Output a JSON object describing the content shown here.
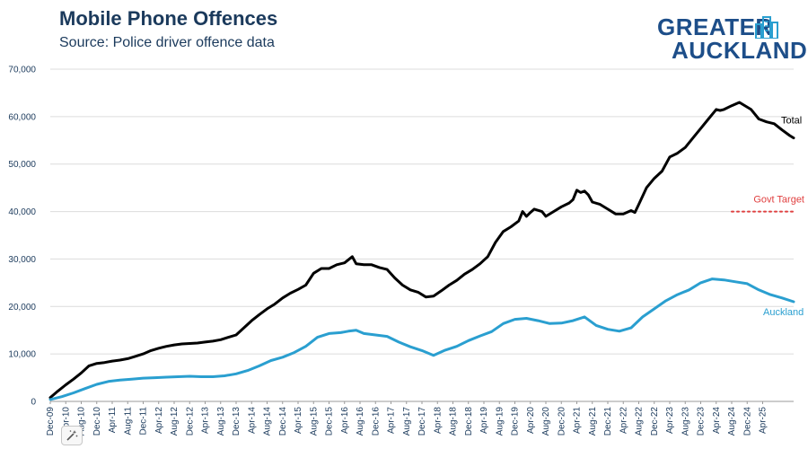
{
  "header": {
    "title": "Mobile Phone Offences",
    "subtitle": "Source: Police driver offence data"
  },
  "logo": {
    "line1": "GREATER",
    "line2": "AUCKLAND",
    "color": "#1d4e89"
  },
  "chart_data": {
    "type": "line",
    "title": "Mobile Phone Offences",
    "subtitle": "Source: Police driver offence data",
    "xlabel": "",
    "ylabel": "",
    "ylim": [
      0,
      70000
    ],
    "yticks": [
      0,
      10000,
      20000,
      30000,
      40000,
      50000,
      60000,
      70000
    ],
    "ytick_labels": [
      "0",
      "10,000",
      "20,000",
      "30,000",
      "40,000",
      "50,000",
      "60,000",
      "70,000"
    ],
    "x_range": [
      "2009-12",
      "2025-06"
    ],
    "x_tick_labels": [
      "Dec-09",
      "Apr-10",
      "Aug-10",
      "Dec-10",
      "Apr-11",
      "Aug-11",
      "Dec-11",
      "Apr-12",
      "Aug-12",
      "Dec-12",
      "Apr-13",
      "Aug-13",
      "Dec-13",
      "Apr-14",
      "Aug-14",
      "Dec-14",
      "Apr-15",
      "Aug-15",
      "Dec-15",
      "Apr-16",
      "Aug-16",
      "Dec-16",
      "Apr-17",
      "Aug-17",
      "Dec-17",
      "Apr-18",
      "Aug-18",
      "Dec-18",
      "Apr-19",
      "Aug-19",
      "Dec-19",
      "Apr-20",
      "Aug-20",
      "Dec-20",
      "Apr-21",
      "Aug-21",
      "Dec-21",
      "Apr-22",
      "Aug-22",
      "Dec-22",
      "Apr-23",
      "Aug-23",
      "Dec-23",
      "Apr-24",
      "Aug-24",
      "Dec-24",
      "Apr-25"
    ],
    "grid": true,
    "series": [
      {
        "name": "Total",
        "color": "#000000",
        "points": [
          [
            0,
            800
          ],
          [
            2,
            2200
          ],
          [
            4,
            3500
          ],
          [
            6,
            4700
          ],
          [
            8,
            6000
          ],
          [
            10,
            7500
          ],
          [
            12,
            8000
          ],
          [
            14,
            8200
          ],
          [
            16,
            8500
          ],
          [
            18,
            8700
          ],
          [
            20,
            9000
          ],
          [
            22,
            9500
          ],
          [
            24,
            10000
          ],
          [
            26,
            10700
          ],
          [
            28,
            11200
          ],
          [
            30,
            11600
          ],
          [
            32,
            11900
          ],
          [
            34,
            12100
          ],
          [
            36,
            12200
          ],
          [
            38,
            12300
          ],
          [
            40,
            12500
          ],
          [
            42,
            12700
          ],
          [
            44,
            13000
          ],
          [
            46,
            13500
          ],
          [
            48,
            14000
          ],
          [
            50,
            15500
          ],
          [
            52,
            17000
          ],
          [
            54,
            18300
          ],
          [
            56,
            19500
          ],
          [
            58,
            20500
          ],
          [
            60,
            21800
          ],
          [
            62,
            22800
          ],
          [
            64,
            23600
          ],
          [
            66,
            24500
          ],
          [
            68,
            27000
          ],
          [
            70,
            28000
          ],
          [
            72,
            28000
          ],
          [
            74,
            28800
          ],
          [
            76,
            29200
          ],
          [
            78,
            30500
          ],
          [
            79,
            29000
          ],
          [
            81,
            28800
          ],
          [
            83,
            28800
          ],
          [
            85,
            28200
          ],
          [
            87,
            27800
          ],
          [
            89,
            26000
          ],
          [
            91,
            24500
          ],
          [
            93,
            23500
          ],
          [
            95,
            23000
          ],
          [
            97,
            22000
          ],
          [
            99,
            22200
          ],
          [
            101,
            23300
          ],
          [
            103,
            24500
          ],
          [
            105,
            25500
          ],
          [
            107,
            26800
          ],
          [
            109,
            27800
          ],
          [
            111,
            29000
          ],
          [
            113,
            30500
          ],
          [
            115,
            33500
          ],
          [
            117,
            35800
          ],
          [
            119,
            36800
          ],
          [
            121,
            38000
          ],
          [
            122,
            40000
          ],
          [
            123,
            39000
          ],
          [
            124,
            39800
          ],
          [
            125,
            40500
          ],
          [
            127,
            40000
          ],
          [
            128,
            39000
          ],
          [
            130,
            40000
          ],
          [
            132,
            41000
          ],
          [
            134,
            41800
          ],
          [
            135,
            42500
          ],
          [
            136,
            44500
          ],
          [
            137,
            44000
          ],
          [
            138,
            44300
          ],
          [
            139,
            43500
          ],
          [
            140,
            42000
          ],
          [
            142,
            41500
          ],
          [
            144,
            40500
          ],
          [
            146,
            39500
          ],
          [
            148,
            39500
          ],
          [
            150,
            40200
          ],
          [
            151,
            39800
          ],
          [
            152,
            41500
          ],
          [
            154,
            45000
          ],
          [
            156,
            47000
          ],
          [
            158,
            48500
          ],
          [
            160,
            51500
          ],
          [
            162,
            52300
          ],
          [
            164,
            53500
          ],
          [
            166,
            55500
          ],
          [
            168,
            57500
          ],
          [
            170,
            59500
          ],
          [
            172,
            61500
          ],
          [
            173,
            61300
          ],
          [
            174,
            61500
          ],
          [
            176,
            62300
          ],
          [
            178,
            63000
          ],
          [
            179,
            62500
          ],
          [
            181,
            61500
          ],
          [
            183,
            59500
          ],
          [
            185,
            58900
          ],
          [
            187,
            58500
          ],
          [
            189,
            57200
          ],
          [
            191,
            56000
          ],
          [
            192,
            55500
          ]
        ]
      },
      {
        "name": "Auckland",
        "color": "#2a9fd0",
        "points": [
          [
            0,
            400
          ],
          [
            3,
            1000
          ],
          [
            6,
            1800
          ],
          [
            9,
            2700
          ],
          [
            12,
            3600
          ],
          [
            15,
            4200
          ],
          [
            18,
            4500
          ],
          [
            21,
            4700
          ],
          [
            24,
            4900
          ],
          [
            27,
            5000
          ],
          [
            30,
            5100
          ],
          [
            33,
            5200
          ],
          [
            36,
            5300
          ],
          [
            39,
            5200
          ],
          [
            42,
            5200
          ],
          [
            45,
            5400
          ],
          [
            48,
            5800
          ],
          [
            51,
            6500
          ],
          [
            54,
            7500
          ],
          [
            57,
            8600
          ],
          [
            60,
            9300
          ],
          [
            63,
            10300
          ],
          [
            66,
            11600
          ],
          [
            69,
            13500
          ],
          [
            72,
            14300
          ],
          [
            75,
            14500
          ],
          [
            77,
            14800
          ],
          [
            79,
            15000
          ],
          [
            81,
            14300
          ],
          [
            84,
            14000
          ],
          [
            87,
            13700
          ],
          [
            90,
            12500
          ],
          [
            93,
            11500
          ],
          [
            96,
            10700
          ],
          [
            99,
            9700
          ],
          [
            102,
            10800
          ],
          [
            105,
            11600
          ],
          [
            108,
            12800
          ],
          [
            111,
            13800
          ],
          [
            114,
            14700
          ],
          [
            117,
            16400
          ],
          [
            120,
            17300
          ],
          [
            123,
            17500
          ],
          [
            126,
            17000
          ],
          [
            129,
            16400
          ],
          [
            132,
            16500
          ],
          [
            135,
            17000
          ],
          [
            138,
            17800
          ],
          [
            141,
            16000
          ],
          [
            144,
            15200
          ],
          [
            147,
            14800
          ],
          [
            150,
            15500
          ],
          [
            153,
            17800
          ],
          [
            156,
            19500
          ],
          [
            159,
            21200
          ],
          [
            162,
            22500
          ],
          [
            165,
            23500
          ],
          [
            168,
            25000
          ],
          [
            171,
            25800
          ],
          [
            174,
            25600
          ],
          [
            177,
            25200
          ],
          [
            180,
            24800
          ],
          [
            183,
            23500
          ],
          [
            186,
            22500
          ],
          [
            189,
            21800
          ],
          [
            192,
            21000
          ]
        ]
      },
      {
        "name": "Govt Target",
        "color": "#e04040",
        "style": "dotted",
        "value": 40000,
        "x_start": 176,
        "x_end": 192
      }
    ],
    "annotations": [
      {
        "text": "Total",
        "series": "Total"
      },
      {
        "text": "Govt Target",
        "series": "Govt Target"
      },
      {
        "text": "Auckland",
        "series": "Auckland"
      }
    ]
  },
  "toolbar": {
    "badge_icon": "magic-wand-icon"
  }
}
